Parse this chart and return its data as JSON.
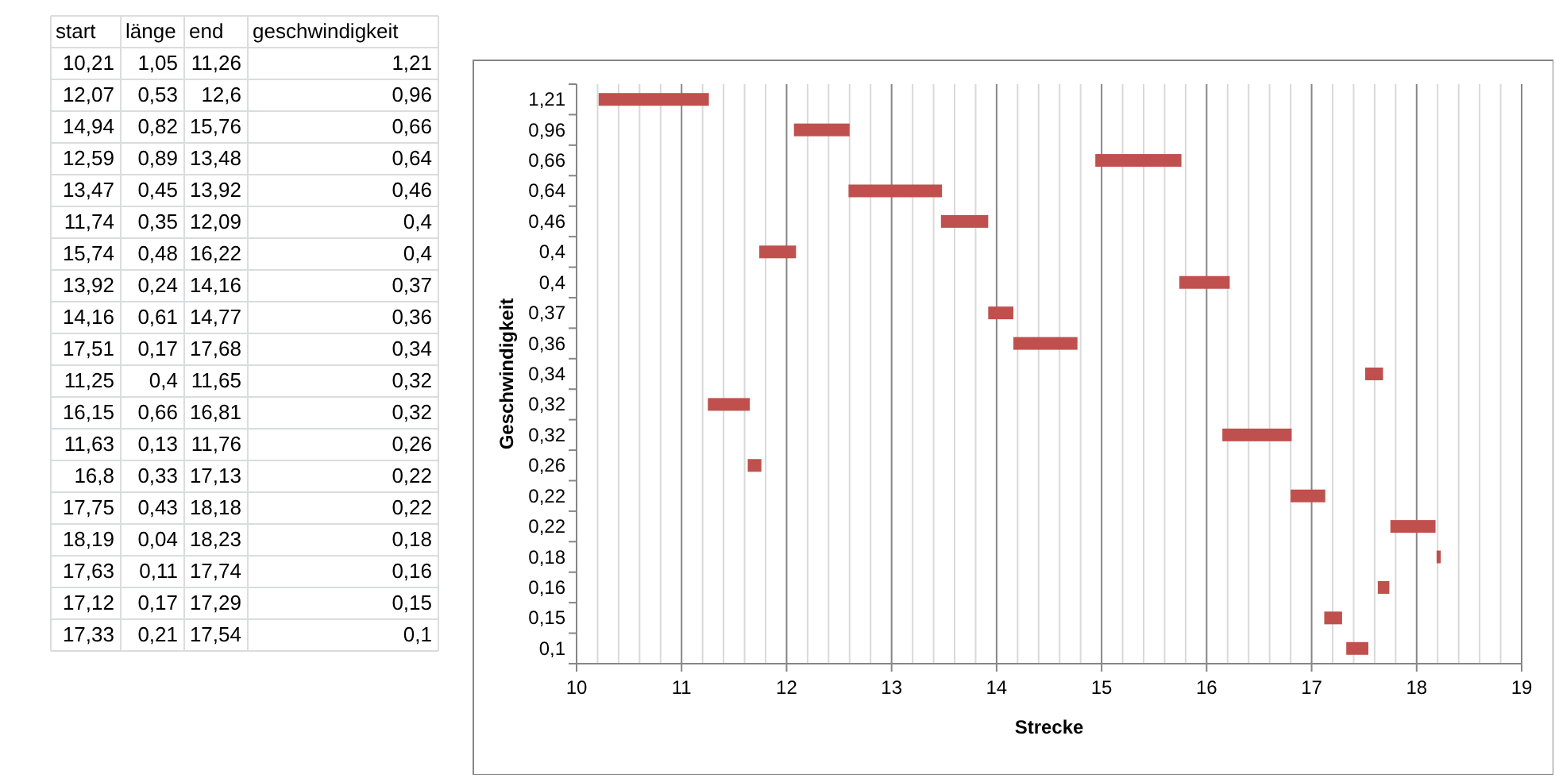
{
  "chart_data": [
    {
      "type": "other",
      "categories": [
        "start",
        "länge",
        "end",
        "geschwindigkeit"
      ],
      "cell_labels": [
        [
          "10,21",
          "1,05",
          "11,26",
          "1,21"
        ],
        [
          "12,07",
          "0,53",
          "12,6",
          "0,96"
        ],
        [
          "14,94",
          "0,82",
          "15,76",
          "0,66"
        ],
        [
          "12,59",
          "0,89",
          "13,48",
          "0,64"
        ],
        [
          "13,47",
          "0,45",
          "13,92",
          "0,46"
        ],
        [
          "11,74",
          "0,35",
          "12,09",
          "0,4"
        ],
        [
          "15,74",
          "0,48",
          "16,22",
          "0,4"
        ],
        [
          "13,92",
          "0,24",
          "14,16",
          "0,37"
        ],
        [
          "14,16",
          "0,61",
          "14,77",
          "0,36"
        ],
        [
          "17,51",
          "0,17",
          "17,68",
          "0,34"
        ],
        [
          "11,25",
          "0,4",
          "11,65",
          "0,32"
        ],
        [
          "16,15",
          "0,66",
          "16,81",
          "0,32"
        ],
        [
          "11,63",
          "0,13",
          "11,76",
          "0,26"
        ],
        [
          "16,8",
          "0,33",
          "17,13",
          "0,22"
        ],
        [
          "17,75",
          "0,43",
          "18,18",
          "0,22"
        ],
        [
          "18,19",
          "0,04",
          "18,23",
          "0,18"
        ],
        [
          "17,63",
          "0,11",
          "17,74",
          "0,16"
        ],
        [
          "17,12",
          "0,17",
          "17,29",
          "0,15"
        ],
        [
          "17,33",
          "0,21",
          "17,54",
          "0,1"
        ]
      ]
    },
    {
      "type": "bar",
      "orientation": "horizontal",
      "xlabel": "Strecke",
      "ylabel": "Geschwindigkeit",
      "categories": [
        "1,21",
        "0,96",
        "0,66",
        "0,64",
        "0,46",
        "0,4",
        "0,4",
        "0,37",
        "0,36",
        "0,34",
        "0,32",
        "0,32",
        "0,26",
        "0,22",
        "0,22",
        "0,18",
        "0,16",
        "0,15",
        "0,1"
      ],
      "base": [
        10.21,
        12.07,
        14.94,
        12.59,
        13.47,
        11.74,
        15.74,
        13.92,
        14.16,
        17.51,
        11.25,
        16.15,
        11.63,
        16.8,
        17.75,
        18.19,
        17.63,
        17.12,
        17.33
      ],
      "values": [
        1.05,
        0.53,
        0.82,
        0.89,
        0.45,
        0.35,
        0.48,
        0.24,
        0.61,
        0.17,
        0.4,
        0.66,
        0.13,
        0.33,
        0.43,
        0.04,
        0.11,
        0.17,
        0.21
      ],
      "color": "#c0504d",
      "xlim": [
        10,
        19
      ],
      "xticks": [
        10,
        11,
        12,
        13,
        14,
        15,
        16,
        17,
        18,
        19
      ],
      "grid": "x"
    }
  ]
}
